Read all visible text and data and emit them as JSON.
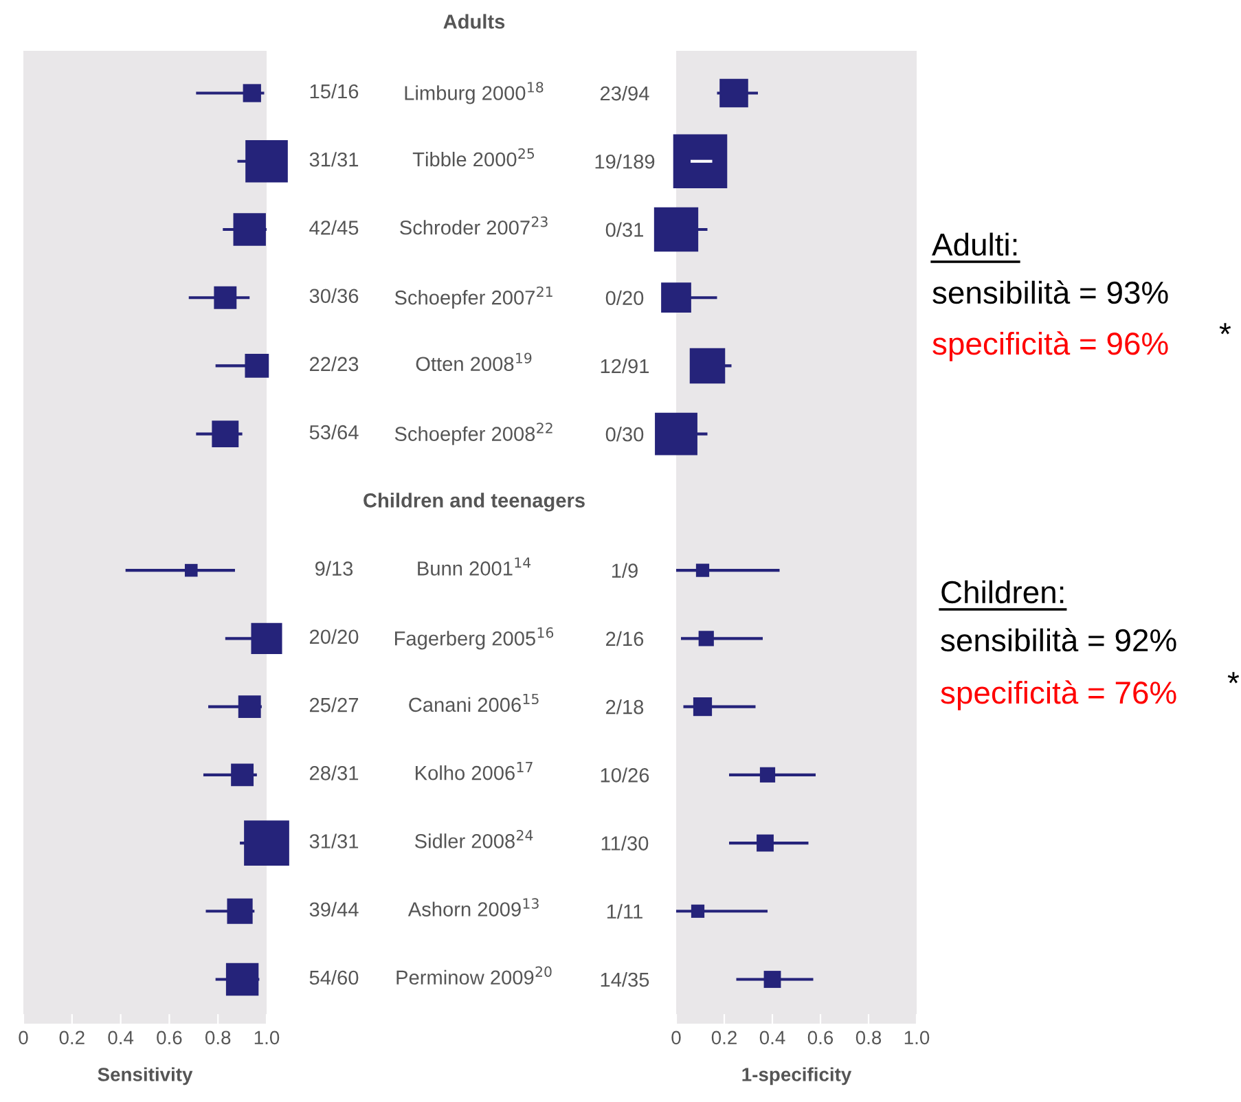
{
  "chart_data": [
    {
      "type": "bubble",
      "orientation": "horizontal",
      "marker": "square",
      "xlabel": "Sensitivity",
      "annotations": [
        "Adults"
      ],
      "categories": [
        "Limburg 2000$^{18}$",
        "Tibble 2000$^{25}$",
        "Schroder 2007$^{23}$",
        "Schoepfer 2007$^{21}$",
        "Otten 2008$^{19}$",
        "Schoepfer 2008$^{22}$",
        "Children and teenagers",
        "Bunn 2001$^{14}$",
        "Fagerberg 2005$^{16}$",
        "Canani 2006$^{15}$",
        "Kolho 2006$^{17}$",
        "Sidler 2008$^{24}$",
        "Ashorn 2009$^{13}$",
        "Perminow 2009$^{20}$"
      ],
      "series": [
        {
          "color": "#25237a",
          "values": [
            0.94,
            1.0,
            0.93,
            0.83,
            0.96,
            0.83,
            null,
            0.69,
            1.0,
            0.93,
            0.9,
            1.0,
            0.89,
            0.9
          ],
          "errors": [
            [
              0.71,
              0.99
            ],
            [
              0.88,
              1.0
            ],
            [
              0.82,
              1.0
            ],
            [
              0.68,
              0.93
            ],
            [
              0.79,
              1.0
            ],
            [
              0.71,
              0.9
            ],
            null,
            [
              0.42,
              0.87
            ],
            [
              0.83,
              1.0
            ],
            [
              0.76,
              0.98
            ],
            [
              0.74,
              0.96
            ],
            [
              0.89,
              1.0
            ],
            [
              0.75,
              0.95
            ],
            [
              0.79,
              0.97
            ]
          ],
          "sizes": [
            0.16,
            0.88,
            0.52,
            0.25,
            0.28,
            0.35,
            null,
            0.08,
            0.47,
            0.25,
            0.25,
            1,
            0.32,
            0.52
          ],
          "value_labels": [
            "15/16",
            "31/31",
            "42/45",
            "30/36",
            "22/23",
            "53/64",
            null,
            "9/13",
            "20/20",
            "25/27",
            "28/31",
            "31/31",
            "39/44",
            "54/60"
          ]
        }
      ],
      "xlim": [
        0,
        1
      ],
      "xticks": [
        0,
        0.2,
        0.4,
        0.6,
        0.8,
        {
          "value": 1,
          "label": "1.0"
        }
      ],
      "grid": false
    },
    {
      "type": "bubble",
      "orientation": "horizontal",
      "marker": "square",
      "xlabel": "1-specificity",
      "annotations": [
        "Adulti:",
        "sensibilità = 93%",
        "specificità = 96%",
        "*",
        "Children:",
        "sensibilità = 92%",
        "specificità = 76%",
        "*"
      ],
      "categories": [
        "23/94",
        "19/189",
        "0/31",
        "0/20",
        "12/91",
        "0/30",
        null,
        "1/9",
        "2/16",
        "2/18",
        "10/26",
        "11/30",
        "1/11",
        "14/35"
      ],
      "series": [
        {
          "color": "#25237a",
          "values": [
            0.24,
            0.1,
            0,
            0,
            0.13,
            0,
            null,
            0.11,
            0.125,
            0.11,
            0.38,
            0.37,
            0.09,
            0.4
          ],
          "errors": [
            [
              0.17,
              0.34
            ],
            [
              0.06,
              0.15
            ],
            [
              0,
              0.13
            ],
            [
              0,
              0.17
            ],
            [
              0.06,
              0.23
            ],
            [
              0,
              0.13
            ],
            null,
            [
              0,
              0.43
            ],
            [
              0.02,
              0.36
            ],
            [
              0.03,
              0.33
            ],
            [
              0.22,
              0.58
            ],
            [
              0.22,
              0.55
            ],
            [
              0,
              0.38
            ],
            [
              0.25,
              0.57
            ]
          ],
          "sizes": [
            0.28,
            1,
            0.67,
            0.31,
            0.43,
            0.62,
            null,
            0.06,
            0.08,
            0.12,
            0.08,
            0.1,
            0.06,
            0.1
          ]
        }
      ],
      "xlim": [
        0,
        1
      ],
      "xticks": [
        0,
        0.2,
        0.4,
        0.6,
        0.8,
        {
          "value": 1,
          "label": "1.0"
        }
      ],
      "grid": false
    }
  ]
}
